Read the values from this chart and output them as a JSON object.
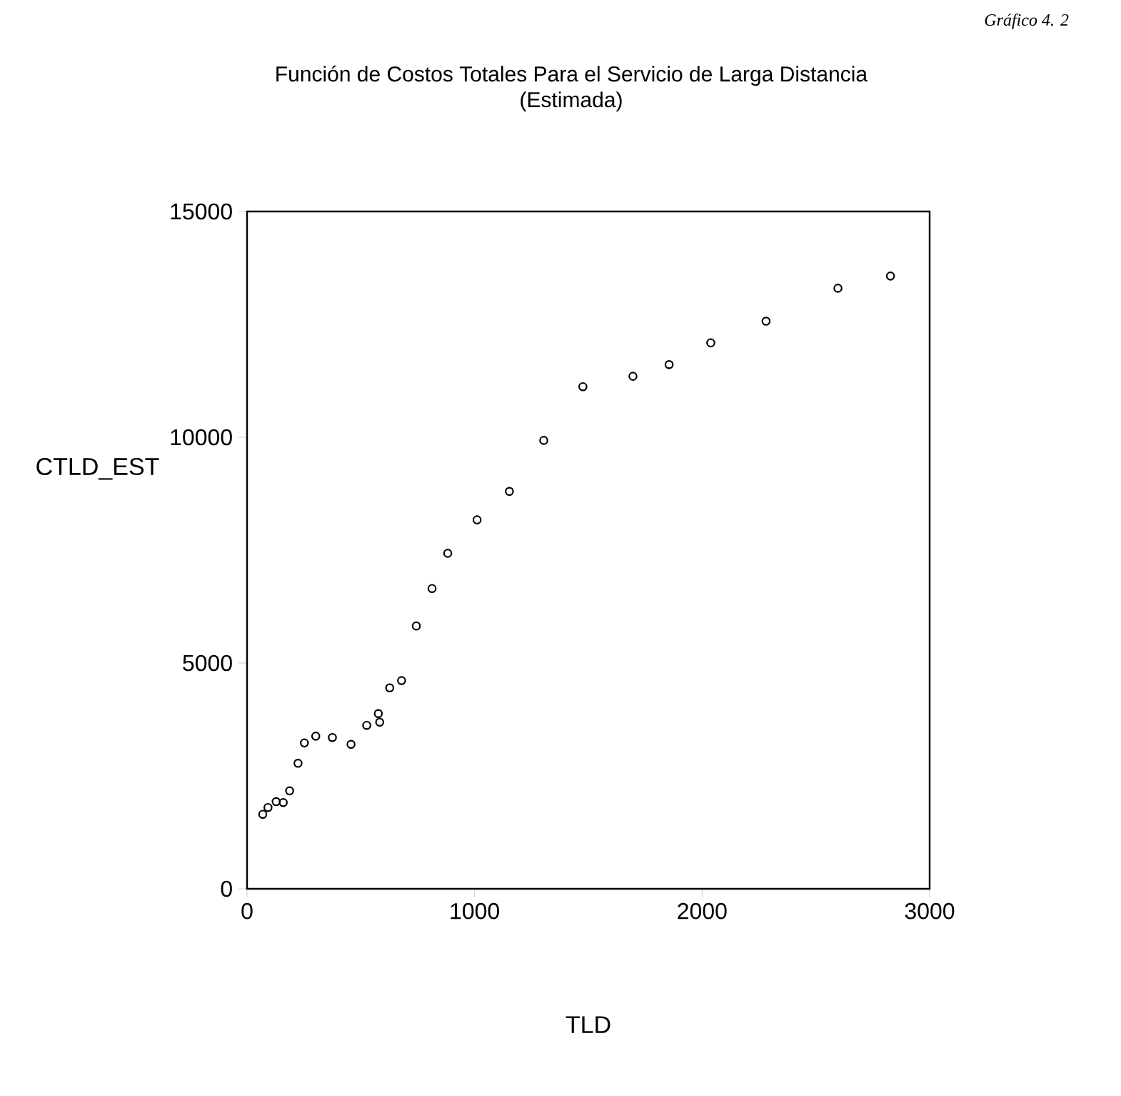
{
  "chart_data": {
    "type": "scatter",
    "title": "Función de Costos Totales Para el Servicio de Larga Distancia",
    "subtitle": "(Estimada)",
    "xlabel": "TLD",
    "ylabel": "CTLD_EST",
    "annotations": [
      "Gráfico 4. 2"
    ],
    "x": [
      69,
      92,
      128,
      159,
      187,
      224,
      252,
      302,
      375,
      457,
      526,
      577,
      583,
      627,
      679,
      744,
      813,
      882,
      1011,
      1153,
      1304,
      1476,
      1696,
      1855,
      2038,
      2281,
      2597,
      2828
    ],
    "series": [
      {
        "color": "#000000",
        "values": [
          1650,
          1800,
          1930,
          1910,
          2170,
          2780,
          3230,
          3380,
          3350,
          3200,
          3620,
          3880,
          3690,
          4450,
          4610,
          5820,
          6650,
          7430,
          8170,
          8800,
          9930,
          11120,
          11350,
          11610,
          12090,
          12570,
          13300,
          13570
        ]
      }
    ],
    "xlim": [
      0,
      3000
    ],
    "ylim": [
      0,
      15000
    ],
    "xticks": [
      0,
      1000,
      2000,
      3000
    ],
    "yticks": [
      0,
      5000,
      10000,
      15000
    ],
    "marker": "circle"
  }
}
